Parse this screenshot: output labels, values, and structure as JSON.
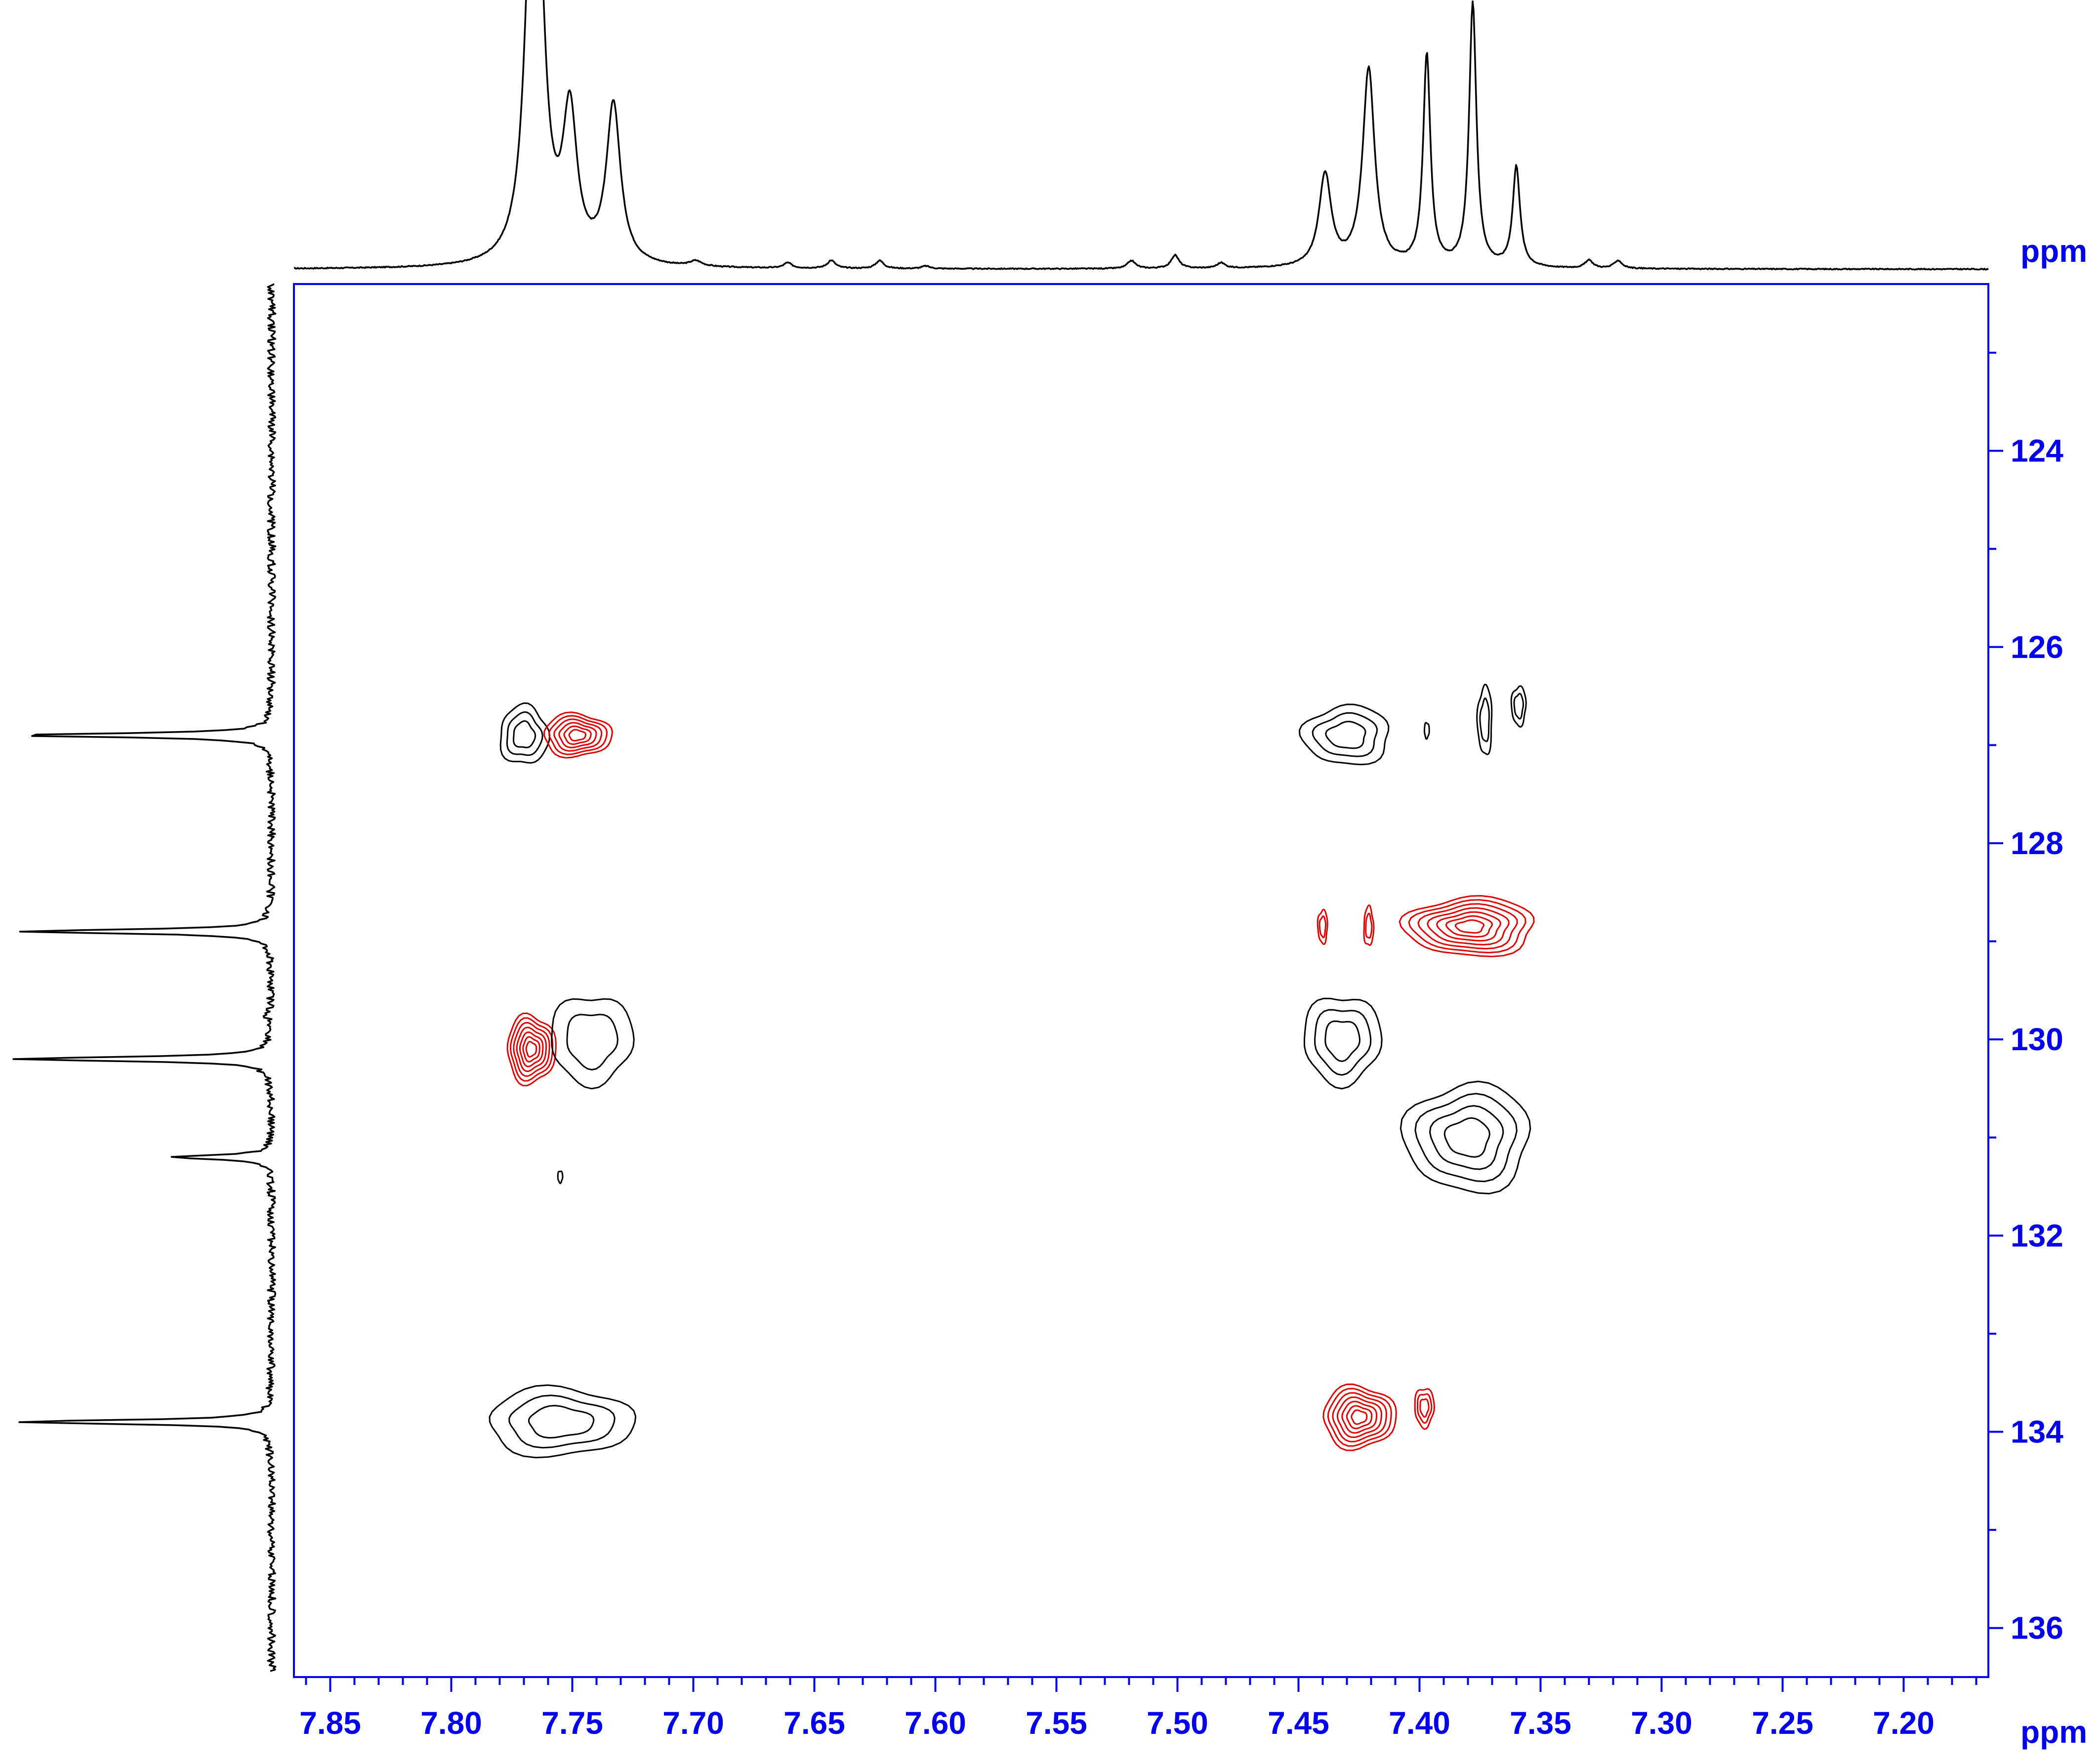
{
  "chart_data": {
    "type": "contour",
    "subtype": "2D NMR heteronuclear correlation",
    "x_axis": {
      "label": "ppm",
      "range": [
        7.865,
        7.165
      ],
      "reversed": true,
      "major_ticks": [
        7.85,
        7.8,
        7.75,
        7.7,
        7.65,
        7.6,
        7.55,
        7.5,
        7.45,
        7.4,
        7.35,
        7.3,
        7.25,
        7.2
      ],
      "tick_labels": [
        "7.85",
        "7.80",
        "7.75",
        "7.70",
        "7.65",
        "7.60",
        "7.55",
        "7.50",
        "7.45",
        "7.40",
        "7.35",
        "7.30",
        "7.25",
        "7.20"
      ],
      "minor_step": 0.01
    },
    "y_axis": {
      "label": "ppm",
      "range": [
        122.3,
        136.5
      ],
      "reversed": true,
      "position": "right",
      "major_ticks": [
        124,
        126,
        128,
        130,
        132,
        134,
        136
      ],
      "tick_labels": [
        "124",
        "126",
        "128",
        "130",
        "132",
        "134",
        "136"
      ],
      "minor_step": 1
    },
    "colors": {
      "positive": "#000000",
      "negative": "#e00000",
      "axis": "#0000ee"
    },
    "top_projection": {
      "peaks": [
        {
          "ppm": 7.767,
          "height": 0.97,
          "width": 0.0035
        },
        {
          "ppm": 7.764,
          "height": 0.9,
          "width": 0.0035
        },
        {
          "ppm": 7.751,
          "height": 0.55,
          "width": 0.0035
        },
        {
          "ppm": 7.733,
          "height": 0.6,
          "width": 0.0035
        },
        {
          "ppm": 7.699,
          "height": 0.02,
          "width": 0.003
        },
        {
          "ppm": 7.661,
          "height": 0.02,
          "width": 0.002
        },
        {
          "ppm": 7.643,
          "height": 0.03,
          "width": 0.002
        },
        {
          "ppm": 7.623,
          "height": 0.03,
          "width": 0.002
        },
        {
          "ppm": 7.604,
          "height": 0.01,
          "width": 0.002
        },
        {
          "ppm": 7.519,
          "height": 0.03,
          "width": 0.002
        },
        {
          "ppm": 7.501,
          "height": 0.05,
          "width": 0.002
        },
        {
          "ppm": 7.482,
          "height": 0.02,
          "width": 0.002
        },
        {
          "ppm": 7.439,
          "height": 0.35,
          "width": 0.003
        },
        {
          "ppm": 7.421,
          "height": 0.75,
          "width": 0.003
        },
        {
          "ppm": 7.397,
          "height": 0.8,
          "width": 0.0018
        },
        {
          "ppm": 7.378,
          "height": 1.0,
          "width": 0.0018
        },
        {
          "ppm": 7.36,
          "height": 0.38,
          "width": 0.0018
        },
        {
          "ppm": 7.33,
          "height": 0.03,
          "width": 0.002
        },
        {
          "ppm": 7.318,
          "height": 0.03,
          "width": 0.002
        }
      ]
    },
    "left_projection": {
      "peaks": [
        {
          "ppm": 126.9,
          "height": 1.0
        },
        {
          "ppm": 128.9,
          "height": 0.99
        },
        {
          "ppm": 129.75,
          "height": 0.03
        },
        {
          "ppm": 130.2,
          "height": 1.02
        },
        {
          "ppm": 131.2,
          "height": 0.4
        },
        {
          "ppm": 133.9,
          "height": 1.0
        }
      ]
    },
    "cross_peaks": [
      {
        "x": 7.77,
        "y": 126.9,
        "sx": 0.01,
        "sy": 0.3,
        "sign": "positive",
        "levels": 3
      },
      {
        "x": 7.748,
        "y": 126.9,
        "sx": 0.014,
        "sy": 0.22,
        "sign": "negative",
        "levels": 6
      },
      {
        "x": 7.43,
        "y": 126.9,
        "sx": 0.018,
        "sy": 0.3,
        "sign": "positive",
        "levels": 3
      },
      {
        "x": 7.397,
        "y": 126.85,
        "sx": 0.001,
        "sy": 0.08,
        "sign": "positive",
        "levels": 1
      },
      {
        "x": 7.373,
        "y": 126.75,
        "sx": 0.003,
        "sy": 0.35,
        "sign": "positive",
        "levels": 2
      },
      {
        "x": 7.359,
        "y": 126.6,
        "sx": 0.003,
        "sy": 0.2,
        "sign": "positive",
        "levels": 2
      },
      {
        "x": 7.44,
        "y": 128.85,
        "sx": 0.002,
        "sy": 0.17,
        "sign": "negative",
        "levels": 2
      },
      {
        "x": 7.421,
        "y": 128.85,
        "sx": 0.002,
        "sy": 0.2,
        "sign": "negative",
        "levels": 2
      },
      {
        "x": 7.379,
        "y": 128.85,
        "sx": 0.027,
        "sy": 0.3,
        "sign": "negative",
        "levels": 7
      },
      {
        "x": 7.767,
        "y": 130.1,
        "sx": 0.01,
        "sy": 0.35,
        "sign": "negative",
        "levels": 7
      },
      {
        "x": 7.742,
        "y": 130.0,
        "sx": 0.017,
        "sy": 0.45,
        "sign": "positive",
        "levels": 2
      },
      {
        "x": 7.432,
        "y": 130.0,
        "sx": 0.016,
        "sy": 0.45,
        "sign": "positive",
        "levels": 3
      },
      {
        "x": 7.38,
        "y": 131.0,
        "sx": 0.026,
        "sy": 0.55,
        "sign": "positive",
        "levels": 4
      },
      {
        "x": 7.755,
        "y": 131.4,
        "sx": 0.001,
        "sy": 0.06,
        "sign": "positive",
        "levels": 1
      },
      {
        "x": 7.755,
        "y": 133.9,
        "sx": 0.03,
        "sy": 0.35,
        "sign": "positive",
        "levels": 3
      },
      {
        "x": 7.425,
        "y": 133.85,
        "sx": 0.015,
        "sy": 0.32,
        "sign": "negative",
        "levels": 7
      },
      {
        "x": 7.398,
        "y": 133.75,
        "sx": 0.004,
        "sy": 0.2,
        "sign": "negative",
        "levels": 3
      }
    ]
  }
}
